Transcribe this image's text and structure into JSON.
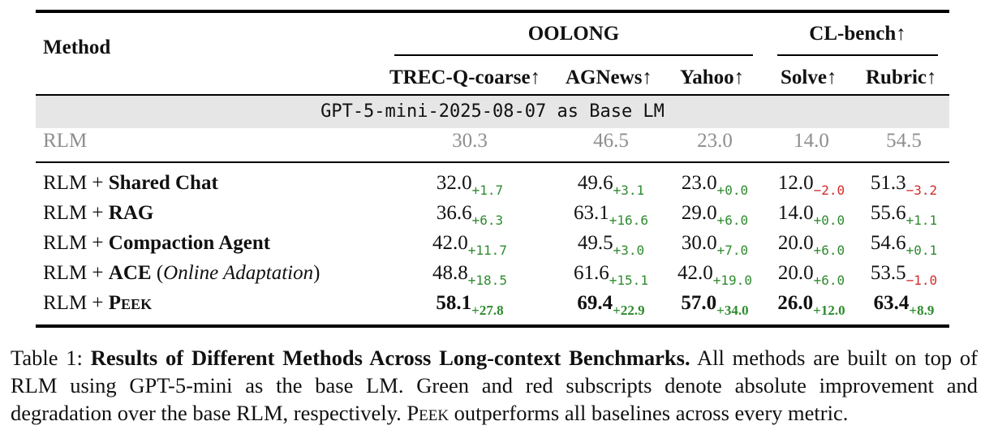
{
  "table": {
    "header": {
      "method": "Method",
      "group1": "OOLONG",
      "group2": "CL-bench↑",
      "columns": [
        "TREC-Q-coarse↑",
        "AGNews↑",
        "Yahoo↑",
        "Solve↑",
        "Rubric↑"
      ]
    },
    "section_label": "GPT-5-mini-2025-08-07 as Base LM",
    "baseline": {
      "method": "RLM",
      "values": [
        "30.3",
        "46.5",
        "23.0",
        "14.0",
        "54.5"
      ]
    },
    "rows": [
      {
        "prefix": "RLM + ",
        "name": "Shared Chat",
        "suffix": "",
        "cells": [
          {
            "v": "32.0",
            "d": "+1.7",
            "s": "pos"
          },
          {
            "v": "49.6",
            "d": "+3.1",
            "s": "pos"
          },
          {
            "v": "23.0",
            "d": "+0.0",
            "s": "pos"
          },
          {
            "v": "12.0",
            "d": "−2.0",
            "s": "neg"
          },
          {
            "v": "51.3",
            "d": "−3.2",
            "s": "neg"
          }
        ]
      },
      {
        "prefix": "RLM + ",
        "name": "RAG",
        "suffix": "",
        "cells": [
          {
            "v": "36.6",
            "d": "+6.3",
            "s": "pos"
          },
          {
            "v": "63.1",
            "d": "+16.6",
            "s": "pos"
          },
          {
            "v": "29.0",
            "d": "+6.0",
            "s": "pos"
          },
          {
            "v": "14.0",
            "d": "+0.0",
            "s": "pos"
          },
          {
            "v": "55.6",
            "d": "+1.1",
            "s": "pos"
          }
        ]
      },
      {
        "prefix": "RLM + ",
        "name": "Compaction Agent",
        "suffix": "",
        "cells": [
          {
            "v": "42.0",
            "d": "+11.7",
            "s": "pos"
          },
          {
            "v": "49.5",
            "d": "+3.0",
            "s": "pos"
          },
          {
            "v": "30.0",
            "d": "+7.0",
            "s": "pos"
          },
          {
            "v": "20.0",
            "d": "+6.0",
            "s": "pos"
          },
          {
            "v": "54.6",
            "d": "+0.1",
            "s": "pos"
          }
        ]
      },
      {
        "prefix": "RLM + ",
        "name": "ACE",
        "suffix": "Online Adaptation",
        "cells": [
          {
            "v": "48.8",
            "d": "+18.5",
            "s": "pos"
          },
          {
            "v": "61.6",
            "d": "+15.1",
            "s": "pos"
          },
          {
            "v": "42.0",
            "d": "+19.0",
            "s": "pos"
          },
          {
            "v": "20.0",
            "d": "+6.0",
            "s": "pos"
          },
          {
            "v": "53.5",
            "d": "−1.0",
            "s": "neg"
          }
        ]
      },
      {
        "prefix": "RLM + ",
        "name": "Peek",
        "suffix": "",
        "bold_values": true,
        "cells": [
          {
            "v": "58.1",
            "d": "+27.8",
            "s": "pos"
          },
          {
            "v": "69.4",
            "d": "+22.9",
            "s": "pos"
          },
          {
            "v": "57.0",
            "d": "+34.0",
            "s": "pos"
          },
          {
            "v": "26.0",
            "d": "+12.0",
            "s": "pos"
          },
          {
            "v": "63.4",
            "d": "+8.9",
            "s": "pos"
          }
        ]
      }
    ]
  },
  "colors": {
    "positive": "#2e8b2e",
    "negative": "#d42b2b",
    "baseline_text": "#8e8e8e",
    "band": "#e6e6e6"
  },
  "caption": {
    "label": "Table 1:",
    "title": "Results of Different Methods Across Long-context Benchmarks.",
    "body_1": "All methods are built on top of RLM using GPT-5-mini as the base LM. Green and red subscripts denote absolute improvement and degradation over the base RLM, respectively.",
    "peek": "Peek",
    "body_2": "outperforms all baselines across every metric."
  }
}
